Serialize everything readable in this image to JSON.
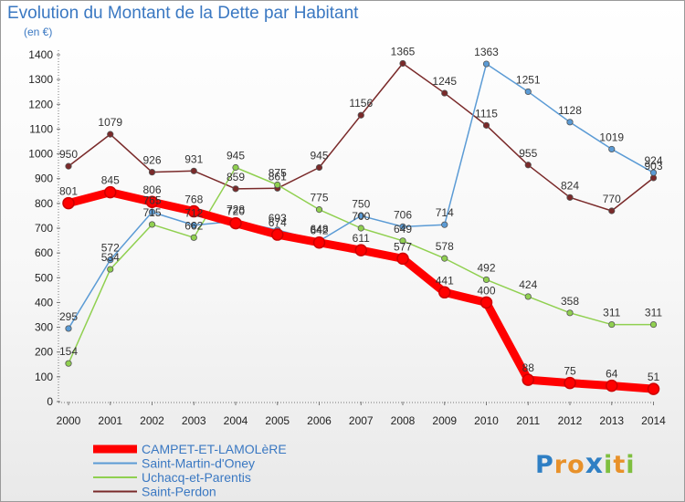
{
  "title": "Evolution du Montant de la Dette par Habitant",
  "subtitle": "(en €)",
  "logo": {
    "letters": [
      "P",
      "r",
      "o",
      "x",
      "i",
      "t",
      "i"
    ],
    "colors": [
      "#2f7fc4",
      "#e8912a",
      "#e8912a",
      "#2f7fc4",
      "#7fbf3f",
      "#e8912a",
      "#7fbf3f"
    ]
  },
  "chart_data": {
    "type": "line",
    "title": "Evolution du Montant de la Dette par Habitant",
    "subtitle": "(en €)",
    "xlabel": "",
    "ylabel": "",
    "x": [
      "2000",
      "2001",
      "2002",
      "2003",
      "2004",
      "2005",
      "2006",
      "2007",
      "2008",
      "2009",
      "2010",
      "2011",
      "2012",
      "2013",
      "2014"
    ],
    "yticks": [
      0,
      100,
      200,
      300,
      400,
      500,
      600,
      700,
      800,
      900,
      1000,
      1100,
      1200,
      1300,
      1400
    ],
    "ylim": [
      0,
      1400
    ],
    "grid": false,
    "legend_position": "bottom-left",
    "series": [
      {
        "name": "CAMPET-ET-LAMOLèRE",
        "color": "#ff0000",
        "values": [
          801,
          845,
          806,
          768,
          720,
          674,
          642,
          611,
          577,
          441,
          400,
          88,
          75,
          64,
          51
        ],
        "labels": [
          "801",
          "845",
          "806",
          "768",
          "720",
          "674",
          "642",
          "611",
          "577",
          "441",
          "400",
          "88",
          "75",
          "64",
          "51"
        ]
      },
      {
        "name": "Saint-Martin-d'Oney",
        "color": "#5b9bd5",
        "values": [
          295,
          572,
          765,
          712,
          728,
          693,
          648,
          750,
          706,
          714,
          1363,
          1251,
          1128,
          1019,
          924
        ],
        "labels": [
          "295",
          "572",
          "765",
          "712",
          "728",
          "693",
          "648",
          "750",
          "706",
          "714",
          "1363",
          "1251",
          "1128",
          "1019",
          "924"
        ]
      },
      {
        "name": "Uchacq-et-Parentis",
        "color": "#90d050",
        "values": [
          154,
          534,
          715,
          662,
          945,
          875,
          775,
          700,
          649,
          578,
          492,
          424,
          358,
          311,
          311
        ],
        "labels": [
          "154",
          "534",
          "715",
          "662",
          "945",
          "875",
          "775",
          "700",
          "649",
          "578",
          "492",
          "424",
          "358",
          "311",
          "311"
        ]
      },
      {
        "name": "Saint-Perdon",
        "color": "#7a2a2a",
        "values": [
          950,
          1079,
          926,
          931,
          859,
          861,
          945,
          1156,
          1365,
          1245,
          1115,
          955,
          824,
          770,
          903
        ],
        "labels": [
          "950",
          "1079",
          "926",
          "931",
          "859",
          "861",
          "945",
          "1156",
          "1365",
          "1245",
          "1115",
          "955",
          "824",
          "770",
          "903"
        ]
      }
    ]
  }
}
